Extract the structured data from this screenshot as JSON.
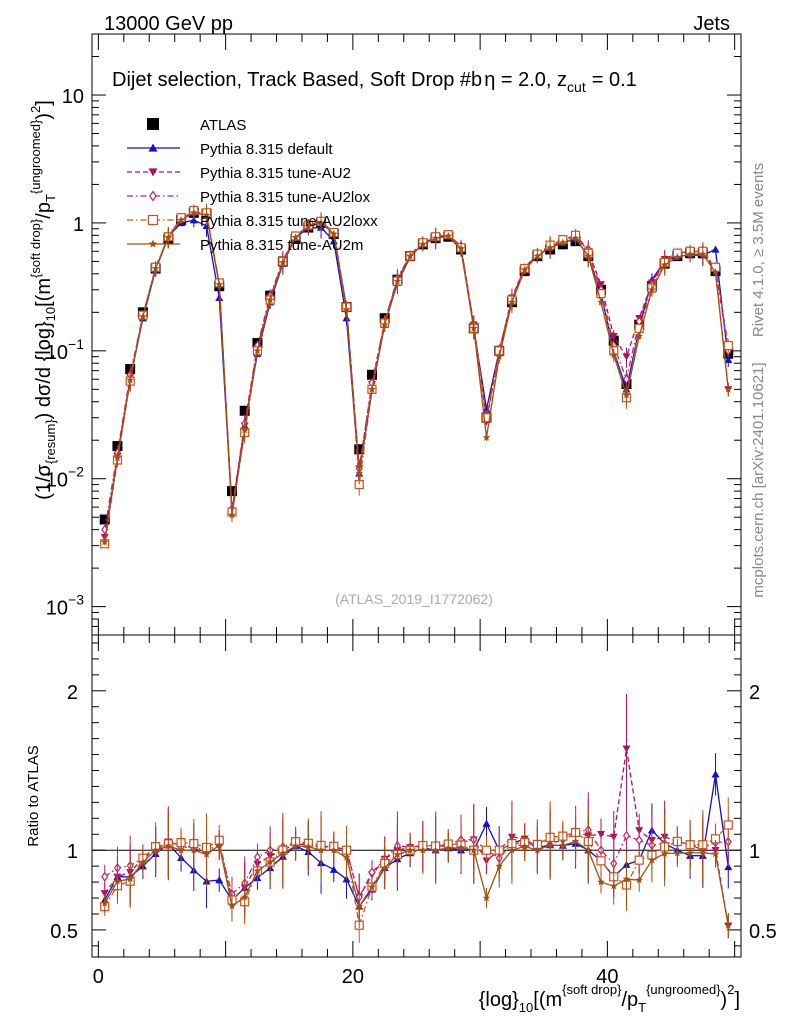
{
  "header": {
    "energy": "13000 GeV pp",
    "category": "Jets",
    "title": "Dijet selection, Track Based, Soft Drop #b",
    "title_eta": "η = 2.0, z",
    "title_cut": "cut",
    "title_zval": "= 0.1",
    "analysis_id": "(ATLAS_2019_I1772062)"
  },
  "side_labels": {
    "rivet": "Rivet 4.1.0, ≥ 3.5M events",
    "mcplots": "mcplots.cern.ch [arXiv:2401.10621]"
  },
  "axes": {
    "ylabel": {
      "p1": "(1/σ",
      "p1_sub": "{resum}",
      "p2": ") dσ/d {log}",
      "p2_sub": "10",
      "p3": "[(m",
      "p3_sup": "{soft drop}",
      "p4": "/p",
      "p4_sub": "T",
      "p4_sup": "{ungroomed}",
      "p5": ")",
      "p5_sup": "2",
      "p6": "]"
    },
    "xlabel": {
      "p1": "{log}",
      "p1_sub": "10",
      "p2": "[(m",
      "p2_sup": "{soft drop}",
      "p3": "/p",
      "p3_sub": "T",
      "p3_sup": "{ungroomed}",
      "p4": ")",
      "p4_sup": "2",
      "p5": "]"
    },
    "ratio_ylabel": "Ratio to ATLAS",
    "main_ylim": [
      0.0006,
      30
    ],
    "ratio_ylim": [
      0.33,
      2.35
    ],
    "xlim": [
      -0.5,
      50.5
    ],
    "main_ticks": [
      {
        "v": 10,
        "base": "10",
        "exp": ""
      },
      {
        "v": 1,
        "base": "1",
        "exp": ""
      },
      {
        "v": 0.1,
        "base": "10",
        "exp": "−1"
      },
      {
        "v": 0.01,
        "base": "10",
        "exp": "−2"
      },
      {
        "v": 0.001,
        "base": "10",
        "exp": "−3"
      }
    ],
    "ratio_ticks": [
      {
        "v": 2,
        "label": "2"
      },
      {
        "v": 1,
        "label": "1"
      },
      {
        "v": 0.5,
        "label": "0.5"
      }
    ],
    "x_ticks": [
      {
        "v": 0,
        "label": "0"
      },
      {
        "v": 20,
        "label": "20"
      },
      {
        "v": 40,
        "label": "40"
      }
    ]
  },
  "chart_data": {
    "type": "scatter",
    "x": [
      0.5,
      1.5,
      2.5,
      3.5,
      4.5,
      5.5,
      6.5,
      7.5,
      8.5,
      9.5,
      10.5,
      11.5,
      12.5,
      13.5,
      14.5,
      15.5,
      16.5,
      17.5,
      18.5,
      19.5,
      20.5,
      21.5,
      22.5,
      23.5,
      24.5,
      25.5,
      26.5,
      27.5,
      28.5,
      29.5,
      30.5,
      31.5,
      32.5,
      33.5,
      34.5,
      35.5,
      36.5,
      37.5,
      38.5,
      39.5,
      40.5,
      41.5,
      42.5,
      43.5,
      44.5,
      45.5,
      46.5,
      47.5,
      48.5,
      49.5
    ],
    "series": [
      {
        "name": "ATLAS",
        "color": "#000000",
        "marker": "square",
        "linestyle": "none",
        "values": [
          0.0048,
          0.018,
          0.072,
          0.2,
          0.44,
          0.75,
          1.05,
          1.2,
          1.18,
          0.32,
          0.008,
          0.034,
          0.115,
          0.27,
          0.5,
          0.75,
          0.92,
          1.0,
          0.82,
          0.22,
          0.017,
          0.065,
          0.18,
          0.36,
          0.55,
          0.68,
          0.76,
          0.78,
          0.62,
          0.15,
          0.03,
          0.1,
          0.24,
          0.42,
          0.55,
          0.62,
          0.68,
          0.72,
          0.55,
          0.3,
          0.12,
          0.055,
          0.16,
          0.32,
          0.48,
          0.55,
          0.58,
          0.58,
          0.42,
          0.095
        ]
      },
      {
        "name": "Pythia 8.315 default",
        "color": "#1010d0",
        "marker": "triangle-up",
        "linestyle": "solid",
        "values": [
          0.0033,
          0.015,
          0.06,
          0.18,
          0.43,
          0.78,
          1.0,
          1.05,
          0.95,
          0.26,
          0.0055,
          0.026,
          0.095,
          0.24,
          0.48,
          0.77,
          0.91,
          0.92,
          0.72,
          0.18,
          0.011,
          0.049,
          0.16,
          0.34,
          0.54,
          0.69,
          0.76,
          0.79,
          0.62,
          0.15,
          0.035,
          0.1,
          0.25,
          0.45,
          0.56,
          0.64,
          0.7,
          0.75,
          0.55,
          0.28,
          0.1,
          0.05,
          0.15,
          0.36,
          0.5,
          0.55,
          0.56,
          0.56,
          0.62,
          0.085
        ]
      },
      {
        "name": "Pythia 8.315 tune-AU2",
        "color": "#b01060",
        "marker": "triangle-down",
        "linestyle": "dashed",
        "values": [
          0.0035,
          0.015,
          0.062,
          0.19,
          0.44,
          0.79,
          1.08,
          1.22,
          1.15,
          0.33,
          0.0055,
          0.026,
          0.105,
          0.26,
          0.5,
          0.78,
          0.95,
          1.02,
          0.84,
          0.22,
          0.012,
          0.055,
          0.17,
          0.36,
          0.56,
          0.7,
          0.78,
          0.8,
          0.65,
          0.16,
          0.028,
          0.1,
          0.26,
          0.45,
          0.55,
          0.65,
          0.72,
          0.8,
          0.6,
          0.33,
          0.13,
          0.09,
          0.18,
          0.34,
          0.52,
          0.58,
          0.6,
          0.58,
          0.42,
          0.05
        ]
      },
      {
        "name": "Pythia 8.315 tune-AU2lox",
        "color": "#c02070",
        "marker": "diamond-open",
        "linestyle": "dashdot",
        "values": [
          0.004,
          0.016,
          0.065,
          0.19,
          0.44,
          0.78,
          1.07,
          1.22,
          1.18,
          0.33,
          0.0058,
          0.027,
          0.11,
          0.27,
          0.51,
          0.79,
          0.95,
          1.02,
          0.83,
          0.22,
          0.012,
          0.056,
          0.17,
          0.37,
          0.56,
          0.7,
          0.78,
          0.81,
          0.66,
          0.16,
          0.03,
          0.095,
          0.25,
          0.43,
          0.57,
          0.66,
          0.73,
          0.8,
          0.62,
          0.3,
          0.11,
          0.06,
          0.17,
          0.33,
          0.5,
          0.58,
          0.6,
          0.59,
          0.44,
          0.1
        ]
      },
      {
        "name": "Pythia 8.315 tune-AU2loxx",
        "color": "#d05018",
        "marker": "square-open",
        "linestyle": "dashdot",
        "values": [
          0.0031,
          0.014,
          0.058,
          0.19,
          0.45,
          0.78,
          1.1,
          1.25,
          1.2,
          0.34,
          0.0055,
          0.023,
          0.1,
          0.25,
          0.5,
          0.79,
          0.96,
          1.03,
          0.84,
          0.22,
          0.009,
          0.05,
          0.165,
          0.35,
          0.55,
          0.7,
          0.78,
          0.81,
          0.64,
          0.15,
          0.03,
          0.1,
          0.25,
          0.44,
          0.57,
          0.67,
          0.74,
          0.8,
          0.58,
          0.28,
          0.1,
          0.043,
          0.15,
          0.31,
          0.49,
          0.58,
          0.6,
          0.6,
          0.45,
          0.11
        ]
      },
      {
        "name": "Pythia 8.315 tune-AU2m",
        "color": "#a05010",
        "marker": "star",
        "linestyle": "solid",
        "values": [
          0.0032,
          0.0145,
          0.059,
          0.185,
          0.44,
          0.77,
          1.05,
          1.2,
          1.15,
          0.33,
          0.0052,
          0.024,
          0.1,
          0.25,
          0.49,
          0.77,
          0.94,
          1.0,
          0.82,
          0.21,
          0.011,
          0.05,
          0.16,
          0.35,
          0.55,
          0.68,
          0.76,
          0.79,
          0.63,
          0.15,
          0.021,
          0.09,
          0.24,
          0.43,
          0.55,
          0.64,
          0.7,
          0.76,
          0.55,
          0.24,
          0.093,
          0.045,
          0.13,
          0.3,
          0.47,
          0.54,
          0.57,
          0.57,
          0.41,
          0.05
        ]
      }
    ]
  }
}
